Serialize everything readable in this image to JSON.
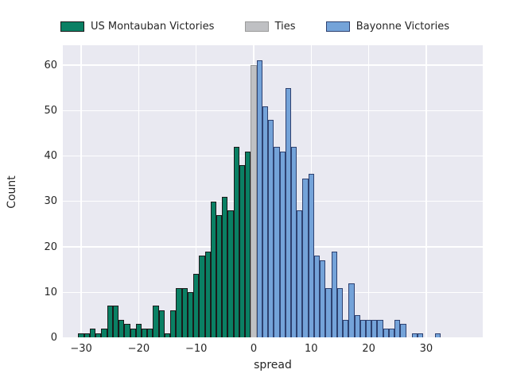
{
  "chart_data": {
    "type": "bar",
    "subtype": "histogram",
    "title": "",
    "xlabel": "spread",
    "ylabel": "Count",
    "grid": true,
    "plot_background": "#e9e9f1",
    "grid_color": "#ffffff",
    "xlim": [
      -33.2,
      39.8
    ],
    "ylim": [
      0,
      64.4
    ],
    "bin_width": 1,
    "legend_position": "top",
    "legend": [
      {
        "label": "US Montauban Victories",
        "fill": "#0a8064",
        "edge": "#1a1a1a"
      },
      {
        "label": "Ties",
        "fill": "#bfc0c3",
        "edge": "#9a9a9a"
      },
      {
        "label": "Bayonne Victories",
        "fill": "#74a3d9",
        "edge": "#2e4170"
      }
    ],
    "axes": {
      "x": {
        "label": "spread",
        "ticks": [
          {
            "v": -30,
            "t": "−30"
          },
          {
            "v": -20,
            "t": "−20"
          },
          {
            "v": -10,
            "t": "−10"
          },
          {
            "v": 0,
            "t": "0"
          },
          {
            "v": 10,
            "t": "10"
          },
          {
            "v": 20,
            "t": "20"
          },
          {
            "v": 30,
            "t": "30"
          }
        ]
      },
      "y": {
        "label": "Count",
        "ticks": [
          {
            "v": 0,
            "t": "0"
          },
          {
            "v": 10,
            "t": "10"
          },
          {
            "v": 20,
            "t": "20"
          },
          {
            "v": 30,
            "t": "30"
          },
          {
            "v": 40,
            "t": "40"
          },
          {
            "v": 50,
            "t": "50"
          },
          {
            "v": 60,
            "t": "60"
          }
        ]
      }
    },
    "series": [
      {
        "name": "US Montauban Victories",
        "fill": "#0a8064",
        "edge": "#1a1a1a",
        "start_x": -30,
        "counts": [
          1,
          1,
          2,
          1,
          2,
          7,
          7,
          4,
          3,
          2,
          3,
          2,
          2,
          7,
          6,
          1,
          6,
          11,
          11,
          10,
          14,
          18,
          19,
          30,
          27,
          31,
          28,
          42,
          38,
          41
        ]
      },
      {
        "name": "Ties",
        "fill": "#bfc0c3",
        "edge": "#9a9a9a",
        "start_x": 0,
        "counts": [
          60
        ]
      },
      {
        "name": "Bayonne Victories",
        "fill": "#74a3d9",
        "edge": "#2e4170",
        "start_x": 1,
        "counts": [
          61,
          51,
          48,
          42,
          41,
          55,
          42,
          28,
          35,
          36,
          18,
          17,
          11,
          19,
          11,
          4,
          12,
          5,
          4,
          4,
          4,
          4,
          2,
          2,
          4,
          3,
          0,
          1,
          1,
          0,
          0,
          1
        ]
      }
    ]
  }
}
